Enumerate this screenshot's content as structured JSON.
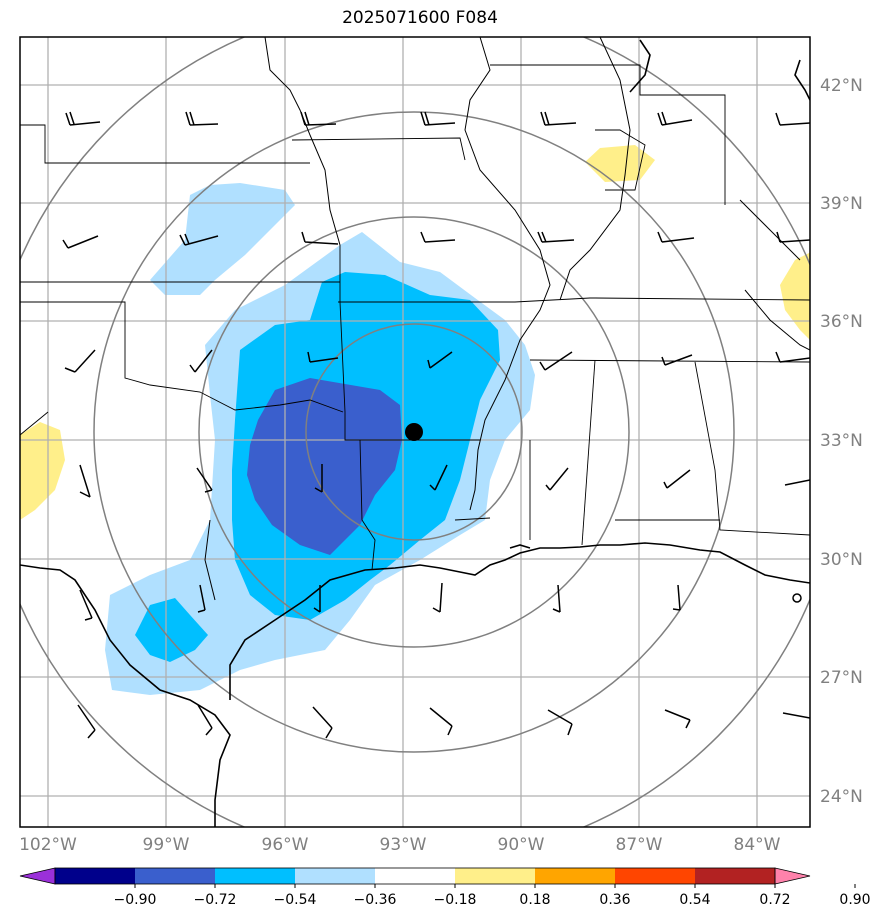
{
  "title": "2025071600 F084",
  "lat_labels": [
    {
      "value": 42,
      "text": "42°N"
    },
    {
      "value": 39,
      "text": "39°N"
    },
    {
      "value": 36,
      "text": "36°N"
    },
    {
      "value": 33,
      "text": "33°N"
    },
    {
      "value": 30,
      "text": "30°N"
    },
    {
      "value": 27,
      "text": "27°N"
    },
    {
      "value": 24,
      "text": "24°N"
    }
  ],
  "lon_labels": [
    {
      "value": -102,
      "text": "102°W"
    },
    {
      "value": -99,
      "text": "99°W"
    },
    {
      "value": -96,
      "text": "96°W"
    },
    {
      "value": -93,
      "text": "93°W"
    },
    {
      "value": -90,
      "text": "90°W"
    },
    {
      "value": -87,
      "text": "87°W"
    },
    {
      "value": -84,
      "text": "84°W"
    }
  ],
  "colorbar": {
    "ticks": [
      "−0.90",
      "−0.72",
      "−0.54",
      "−0.36",
      "−0.18",
      "0.18",
      "0.36",
      "0.54",
      "0.72",
      "0.90"
    ],
    "colors": [
      "#9b30d9",
      "#00008b",
      "#3a5fcd",
      "#00bfff",
      "#b0e0ff",
      "#ffffff",
      "#ffef8a",
      "#ffa500",
      "#ff4500",
      "#b22222",
      "#ff82ab"
    ]
  },
  "colors": {
    "contour_dark": "#3a5fcd",
    "contour_mid": "#00bfff",
    "contour_light": "#b0e0ff",
    "contour_positive": "#ffef8a",
    "range_rings": "#808080",
    "grid": "#b0b0b0"
  },
  "center_marker": {
    "lat": 33.2,
    "lon": -92.6
  }
}
